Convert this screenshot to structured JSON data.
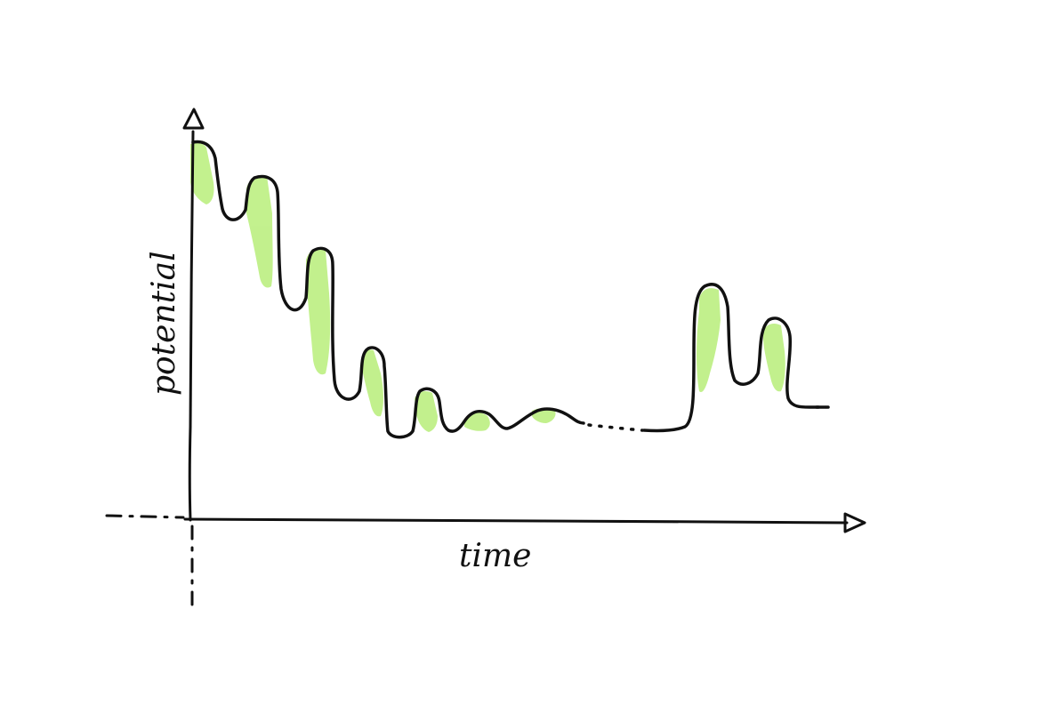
{
  "labels": {
    "y_axis": "potential",
    "x_axis": "time"
  },
  "colors": {
    "ink": "#111111",
    "highlight": "#b8ee7a",
    "paper": "#ffffff"
  }
}
